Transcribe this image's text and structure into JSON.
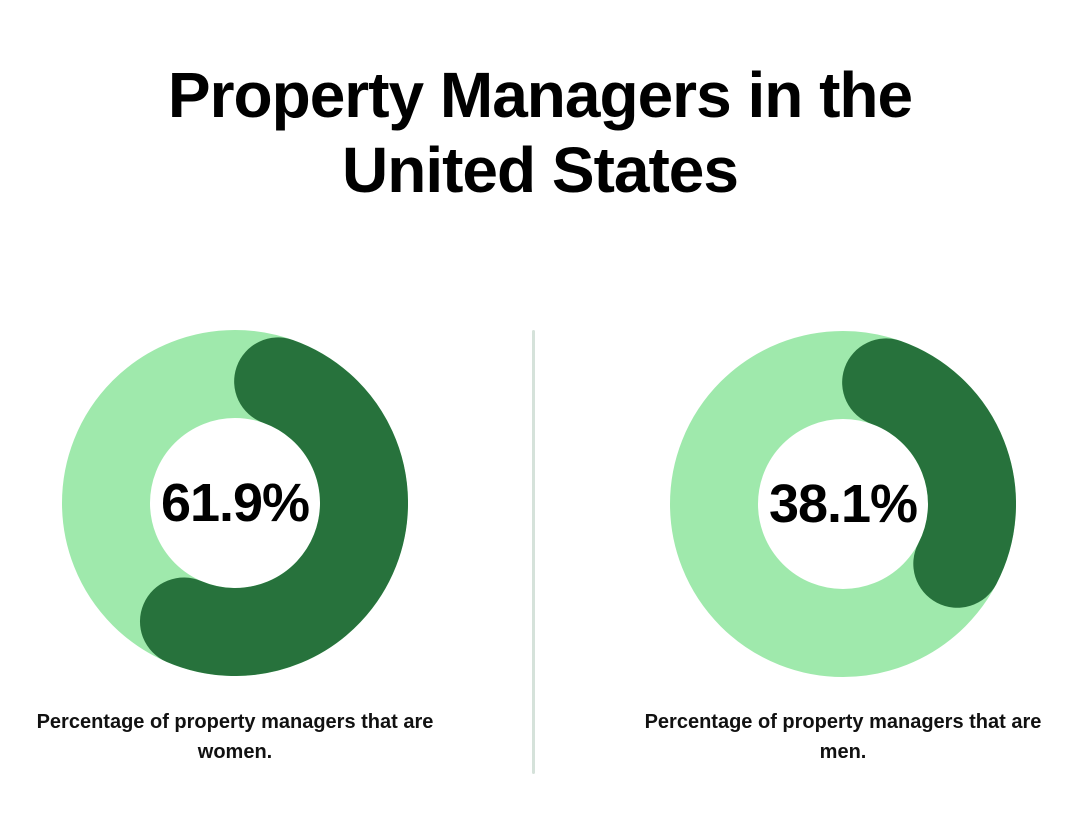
{
  "page": {
    "title": "Property Managers in the United States",
    "background_color": "#ffffff",
    "divider_color": "#d5e2da",
    "text_color": "#000000"
  },
  "chart_data": [
    {
      "type": "pie",
      "variant": "donut",
      "center_label": "61.9%",
      "caption": "Percentage of property managers that are women.",
      "slices": [
        {
          "name": "women",
          "value": 61.9,
          "color": "#27723c"
        },
        {
          "name": "remainder",
          "value": 38.1,
          "color": "#9fe9ac"
        }
      ],
      "start_angle_deg": 0,
      "direction": "clockwise",
      "rounded_caps": true,
      "donut_hole_ratio": 0.49,
      "legend": "none",
      "grid": "off"
    },
    {
      "type": "pie",
      "variant": "donut",
      "center_label": "38.1%",
      "caption": "Percentage of property managers that are men.",
      "slices": [
        {
          "name": "men",
          "value": 38.1,
          "color": "#27723c"
        },
        {
          "name": "remainder",
          "value": 61.9,
          "color": "#9fe9ac"
        }
      ],
      "start_angle_deg": 0,
      "direction": "clockwise",
      "rounded_caps": true,
      "donut_hole_ratio": 0.49,
      "legend": "none",
      "grid": "off"
    }
  ]
}
